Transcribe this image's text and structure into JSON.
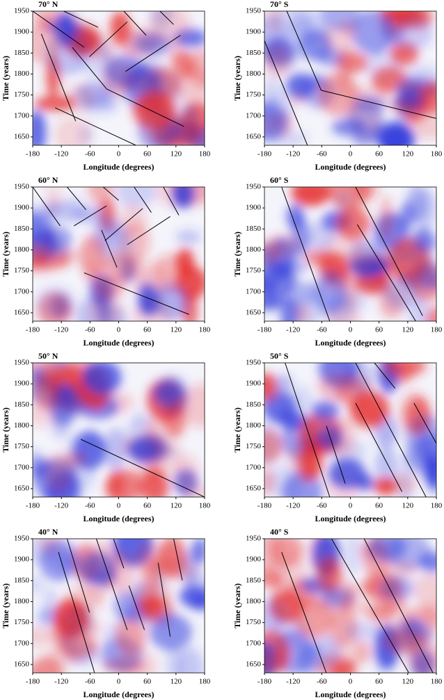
{
  "chart_data": [
    {
      "type": "contour",
      "title": "70° N",
      "xlabel": "Longitude (degrees)",
      "ylabel": "Time (years)",
      "xlim": [
        -180,
        180
      ],
      "ylim": [
        1630,
        1950
      ],
      "xticks": [
        -180,
        -120,
        -60,
        0,
        60,
        120,
        180
      ],
      "yticks": [
        1650,
        1700,
        1750,
        1800,
        1850,
        1900,
        1950
      ]
    },
    {
      "type": "contour",
      "title": "70° S",
      "xlabel": "Longitude (degrees)",
      "ylabel": "Time (years)",
      "xlim": [
        -180,
        180
      ],
      "ylim": [
        1630,
        1950
      ],
      "xticks": [
        -180,
        -120,
        -60,
        0,
        60,
        120,
        180
      ],
      "yticks": [
        1650,
        1700,
        1750,
        1800,
        1850,
        1900,
        1950
      ]
    },
    {
      "type": "contour",
      "title": "60° N",
      "xlabel": "Longitude (degrees)",
      "ylabel": "Time (years)",
      "xlim": [
        -180,
        180
      ],
      "ylim": [
        1630,
        1950
      ],
      "xticks": [
        -180,
        -120,
        -60,
        0,
        60,
        120,
        180
      ],
      "yticks": [
        1650,
        1700,
        1750,
        1800,
        1850,
        1900,
        1950
      ]
    },
    {
      "type": "contour",
      "title": "60° S",
      "xlabel": "Longitude (degrees)",
      "ylabel": "Time (years)",
      "xlim": [
        -180,
        180
      ],
      "ylim": [
        1630,
        1950
      ],
      "xticks": [
        -180,
        -120,
        -60,
        0,
        60,
        120,
        180
      ],
      "yticks": [
        1650,
        1700,
        1750,
        1800,
        1850,
        1900,
        1950
      ]
    },
    {
      "type": "contour",
      "title": "50° N",
      "xlabel": "Longitude (degrees)",
      "ylabel": "Time (years)",
      "xlim": [
        -180,
        180
      ],
      "ylim": [
        1630,
        1950
      ],
      "xticks": [
        -180,
        -120,
        -60,
        0,
        60,
        120,
        180
      ],
      "yticks": [
        1650,
        1700,
        1750,
        1800,
        1850,
        1900,
        1950
      ]
    },
    {
      "type": "contour",
      "title": "50° S",
      "xlabel": "Longitude (degrees)",
      "ylabel": "Time (years)",
      "xlim": [
        -180,
        180
      ],
      "ylim": [
        1630,
        1950
      ],
      "xticks": [
        -180,
        -120,
        -60,
        0,
        60,
        120,
        180
      ],
      "yticks": [
        1650,
        1700,
        1750,
        1800,
        1850,
        1900,
        1950
      ]
    },
    {
      "type": "contour",
      "title": "40° N",
      "xlabel": "Longitude (degrees)",
      "ylabel": "Time (years)",
      "xlim": [
        -180,
        180
      ],
      "ylim": [
        1630,
        1950
      ],
      "xticks": [
        -180,
        -120,
        -60,
        0,
        60,
        120,
        180
      ],
      "yticks": [
        1650,
        1700,
        1750,
        1800,
        1850,
        1900,
        1950
      ]
    },
    {
      "type": "contour",
      "title": "40° S",
      "xlabel": "Longitude (degrees)",
      "ylabel": "Time (years)",
      "xlim": [
        -180,
        180
      ],
      "ylim": [
        1630,
        1950
      ],
      "xticks": [
        -180,
        -120,
        -60,
        0,
        60,
        120,
        180
      ],
      "yticks": [
        1650,
        1700,
        1750,
        1800,
        1850,
        1900,
        1950
      ]
    }
  ]
}
